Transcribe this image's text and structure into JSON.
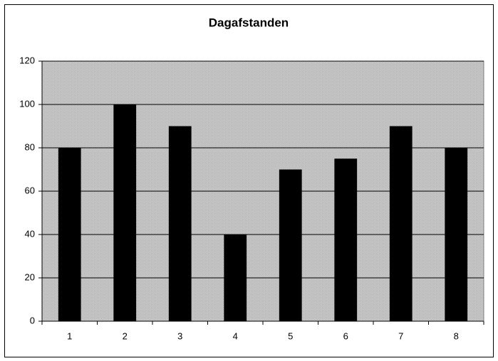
{
  "chart_data": {
    "type": "bar",
    "title": "Dagafstanden",
    "categories": [
      "1",
      "2",
      "3",
      "4",
      "5",
      "6",
      "7",
      "8"
    ],
    "values": [
      80,
      100,
      90,
      40,
      70,
      75,
      90,
      80
    ],
    "color": "#000000",
    "ylim": [
      0,
      120
    ],
    "yticks": [
      0,
      20,
      40,
      60,
      80,
      100,
      120
    ],
    "grid": true
  }
}
